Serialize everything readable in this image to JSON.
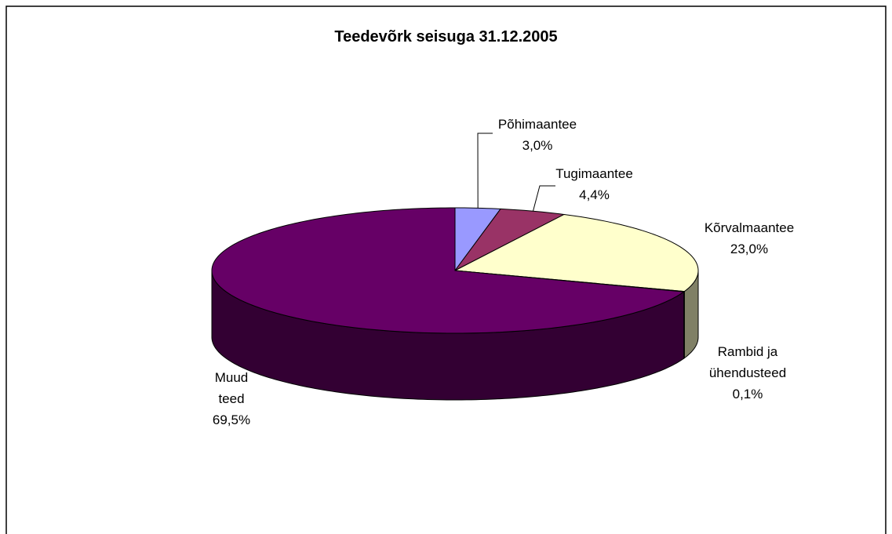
{
  "chart_data": {
    "type": "pie",
    "title": "Teedevõrk seisuga 31.12.2005",
    "categories": [
      "Põhimaantee",
      "Tugimaantee",
      "Kõrvalmaantee",
      "Rambid ja ühendusteed",
      "Muud teed"
    ],
    "values": [
      3.0,
      4.4,
      23.0,
      0.1,
      69.5
    ],
    "value_labels": [
      "3,0%",
      "4,4%",
      "23,0%",
      "0,1%",
      "69,5%"
    ],
    "colors": [
      "#9999ff",
      "#993366",
      "#ffffcc",
      "#8a8a6a",
      "#660066"
    ]
  }
}
